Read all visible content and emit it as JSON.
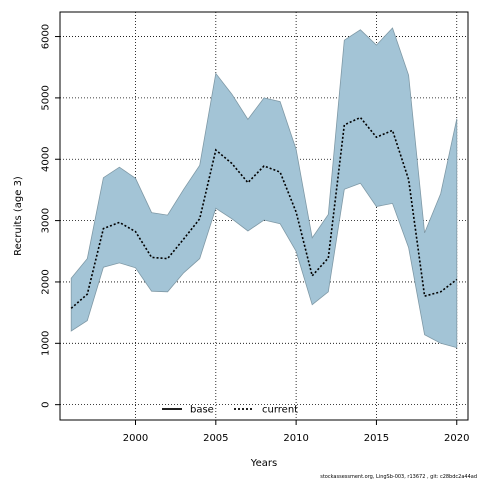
{
  "chart_data": {
    "type": "area",
    "xlabel": "Years",
    "ylabel": "Recruits (age 3)",
    "xlim": [
      1995.3,
      2020.7
    ],
    "ylim": [
      -250,
      6400
    ],
    "x_ticks": [
      2000,
      2005,
      2010,
      2015,
      2020
    ],
    "y_ticks": [
      0,
      1000,
      2000,
      3000,
      4000,
      5000,
      6000
    ],
    "grid": true,
    "legend_position": "bottom",
    "legend": [
      {
        "label": "base",
        "style": "solid",
        "color": "#000000"
      },
      {
        "label": "current",
        "style": "dotted",
        "color": "#000000"
      }
    ],
    "x": [
      1996,
      1997,
      1998,
      1999,
      2000,
      2001,
      2002,
      2003,
      2004,
      2005,
      2006,
      2007,
      2008,
      2009,
      2010,
      2011,
      2012,
      2013,
      2014,
      2015,
      2016,
      2017,
      2018,
      2019,
      2020
    ],
    "series": [
      {
        "name": "current",
        "values": [
          1570,
          1800,
          2870,
          2970,
          2820,
          2400,
          2380,
          2700,
          3030,
          4150,
          3930,
          3620,
          3890,
          3790,
          3140,
          2100,
          2390,
          4560,
          4680,
          4360,
          4470,
          3670,
          1770,
          1840,
          2040
        ],
        "lower": [
          1200,
          1370,
          2240,
          2310,
          2230,
          1850,
          1840,
          2150,
          2380,
          3200,
          3030,
          2830,
          3010,
          2950,
          2500,
          1630,
          1840,
          3510,
          3610,
          3230,
          3280,
          2560,
          1140,
          1000,
          930
        ],
        "upper": [
          2060,
          2380,
          3700,
          3870,
          3690,
          3130,
          3090,
          3510,
          3900,
          5400,
          5060,
          4650,
          5000,
          4940,
          4160,
          2720,
          3100,
          5940,
          6110,
          5860,
          6140,
          5370,
          2800,
          3440,
          4660
        ]
      }
    ],
    "band_color": "#a3c4d6",
    "band_edge_color": "#7f99a6"
  },
  "footer": "stockassessment.org, LingSb-003, r13672 , git: c28bdc2a44ad"
}
